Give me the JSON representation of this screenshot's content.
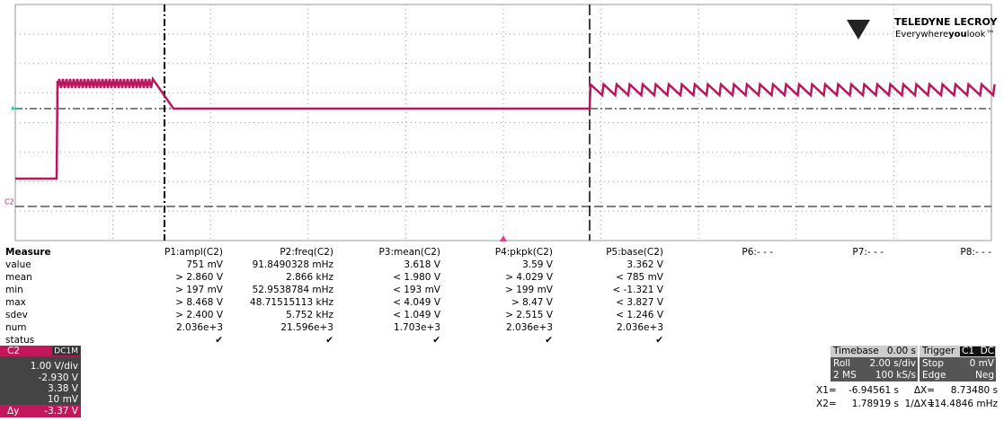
{
  "logo": {
    "brand": "TELEDYNE LECROY",
    "tagline": [
      "Everywhere",
      "you",
      "look™"
    ]
  },
  "trace_label": "C2",
  "measure": {
    "header": "Measure",
    "rows": [
      "value",
      "mean",
      "min",
      "max",
      "sdev",
      "num",
      "status"
    ],
    "columns": [
      {
        "name": "P1:ampl(C2)",
        "cells": [
          "751 mV",
          "> 2.860 V",
          "> 197 mV",
          "> 8.468 V",
          "> 2.400 V",
          "2.036e+3",
          "✔"
        ]
      },
      {
        "name": "P2:freq(C2)",
        "cells": [
          "91.8490328 mHz",
          "2.866 kHz",
          "52.9538784 mHz",
          "48.71515113 kHz",
          "5.752 kHz",
          "21.596e+3",
          "✔"
        ]
      },
      {
        "name": "P3:mean(C2)",
        "cells": [
          "3.618 V",
          "< 1.980 V",
          "< 193 mV",
          "< 4.049 V",
          "< 1.049 V",
          "1.703e+3",
          "✔"
        ]
      },
      {
        "name": "P4:pkpk(C2)",
        "cells": [
          "3.59 V",
          "> 4.029 V",
          "> 199 mV",
          "> 8.47 V",
          "> 2.515 V",
          "2.036e+3",
          "✔"
        ]
      },
      {
        "name": "P5:base(C2)",
        "cells": [
          "3.362 V",
          "< 785 mV",
          "< -1.321 V",
          "< 3.827 V",
          "< 1.246 V",
          "2.036e+3",
          "✔"
        ]
      },
      {
        "name": "P6:- - -",
        "cells": []
      },
      {
        "name": "P7:- - -",
        "cells": []
      },
      {
        "name": "P8:- - -",
        "cells": []
      }
    ]
  },
  "channel": {
    "name": "C2",
    "coupling": "DC1M",
    "vdiv": "1.00 V/div",
    "offset": "-2.930 V",
    "cursor1": "3.38 V",
    "cursor2": "10 mV",
    "delta_label": "Δy",
    "delta": "-3.37 V"
  },
  "timebase": {
    "label": "Timebase",
    "delay": "0.00 s",
    "mode": "Roll",
    "rate": "2.00 s/div",
    "samples": "2 MS",
    "srate": "100 kS/s"
  },
  "trigger": {
    "label": "Trigger",
    "channel": "C1",
    "coupling": "DC",
    "mode": "Stop",
    "level": "0 mV",
    "type": "Edge",
    "slope": "Neg"
  },
  "cursors": {
    "x1_label": "X1=",
    "x1": "-6.94561 s",
    "dx_label": "ΔX=",
    "dx": "8.73480 s",
    "x2_label": "X2=",
    "x2": "1.78919 s",
    "inv_label": "1/ΔX=",
    "inv": "114.4846 mHz"
  }
}
